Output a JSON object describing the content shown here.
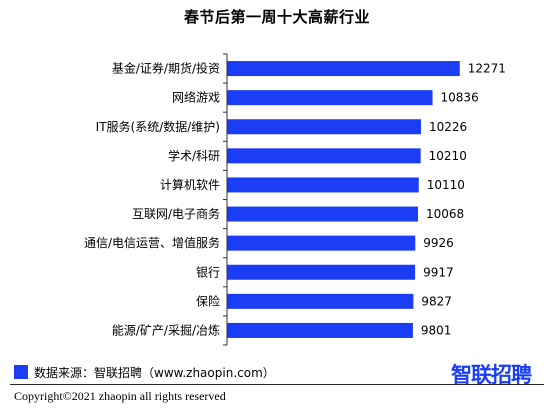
{
  "chart_data": {
    "type": "bar",
    "orientation": "horizontal",
    "title": "春节后第一周十大高薪行业",
    "categories": [
      "基金/证券/期货/投资",
      "网络游戏",
      "IT服务(系统/数据/维护)",
      "学术/科研",
      "计算机软件",
      "互联网/电子商务",
      "通信/电信运营、增值服务",
      "银行",
      "保险",
      "能源/矿产/采掘/冶炼"
    ],
    "values": [
      12271,
      10836,
      10226,
      10210,
      10110,
      10068,
      9926,
      9917,
      9827,
      9801
    ],
    "xlim": [
      0,
      12600
    ],
    "grid": false,
    "bar_color": "#1a3df5"
  },
  "source": {
    "text": "数据来源：智联招聘（www.zhaopin.com）",
    "swatch_color": "#1a3df5"
  },
  "logo": {
    "text": "智联招聘",
    "color": "#1a3df5"
  },
  "footer": {
    "copyright": "Copyright©2021 zhaopin all rights reserved"
  }
}
